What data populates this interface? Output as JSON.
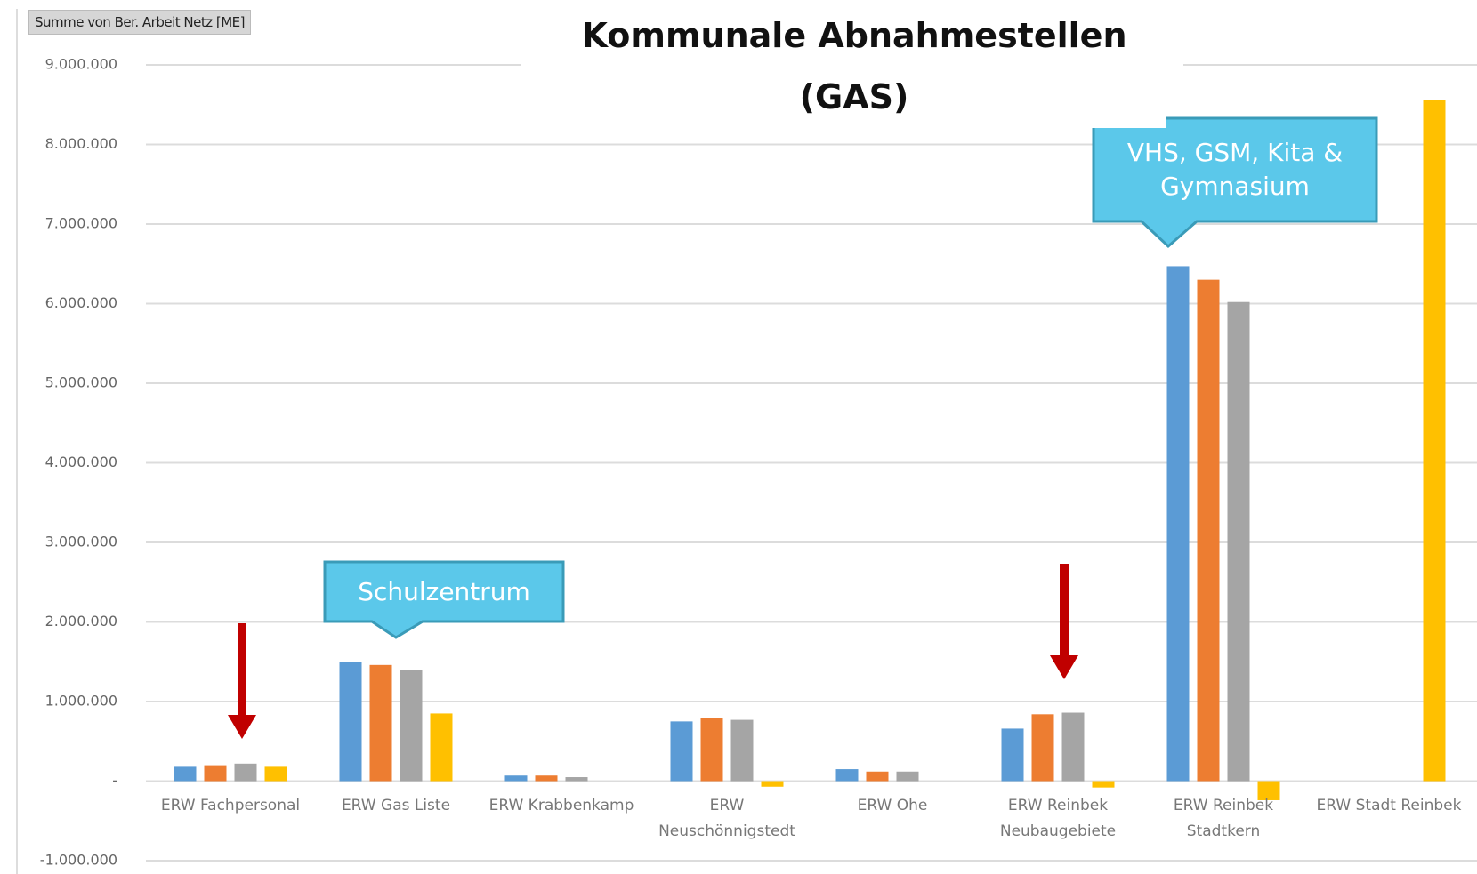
{
  "chart_data": {
    "type": "bar",
    "title": "Kommunale Abnahmestellen\n(GAS)",
    "field_button": "Summe von Ber. Arbeit Netz [ME]",
    "annotations": [
      "Schulzentrum",
      "VHS, GSM, Kita &\nGymnasium"
    ],
    "categories": [
      "ERW Fachpersonal",
      "ERW Gas Liste",
      "ERW Krabbenkamp",
      "ERW\nNeuschönnigstedt",
      "ERW Ohe",
      "ERW Reinbek\nNeubaugebiete",
      "ERW Reinbek\nStadtkern",
      "ERW Stadt Reinbek"
    ],
    "series": [
      {
        "color": "#5b9bd5",
        "values": [
          180000,
          1500000,
          70000,
          750000,
          150000,
          660000,
          6470000,
          null
        ]
      },
      {
        "color": "#ed7d31",
        "values": [
          200000,
          1460000,
          70000,
          790000,
          120000,
          840000,
          6300000,
          null
        ]
      },
      {
        "color": "#a5a5a5",
        "values": [
          220000,
          1400000,
          50000,
          770000,
          120000,
          860000,
          6020000,
          null
        ]
      },
      {
        "color": "#ffc000",
        "values": [
          180000,
          850000,
          null,
          -70000,
          null,
          -80000,
          -240000,
          8560000
        ]
      }
    ],
    "ylim": [
      -1000000,
      9000000
    ],
    "yticks": [
      {
        "value": -1000000,
        "label": "-1.000.000"
      },
      {
        "value": 0,
        "label": "-"
      },
      {
        "value": 1000000,
        "label": "1.000.000"
      },
      {
        "value": 2000000,
        "label": "2.000.000"
      },
      {
        "value": 3000000,
        "label": "3.000.000"
      },
      {
        "value": 4000000,
        "label": "4.000.000"
      },
      {
        "value": 5000000,
        "label": "5.000.000"
      },
      {
        "value": 6000000,
        "label": "6.000.000"
      },
      {
        "value": 7000000,
        "label": "7.000.000"
      },
      {
        "value": 8000000,
        "label": "8.000.000"
      },
      {
        "value": 9000000,
        "label": "9.000.000"
      }
    ],
    "grid": true
  }
}
